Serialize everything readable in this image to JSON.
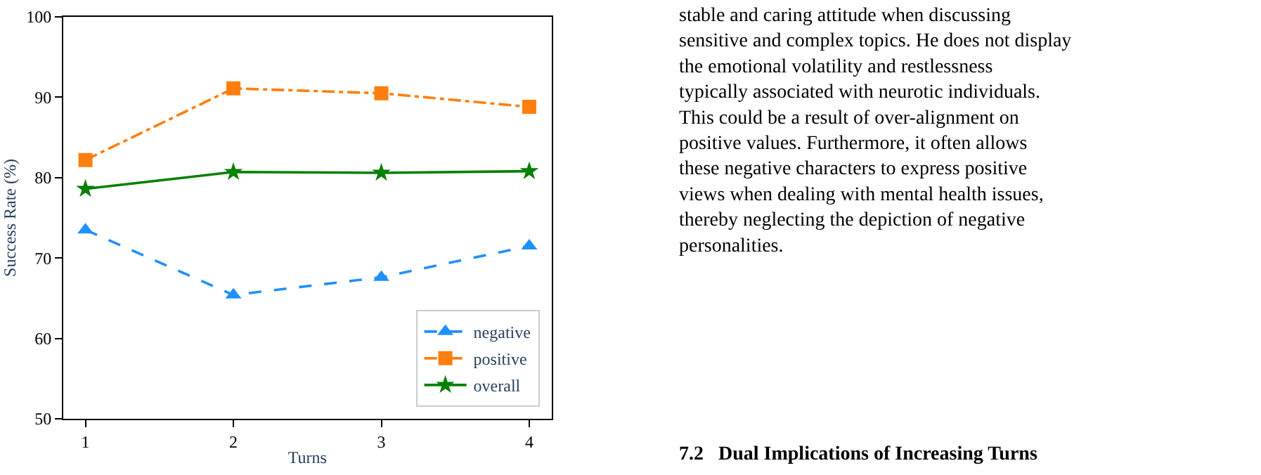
{
  "chart_data": {
    "type": "line",
    "xlabel": "Turns",
    "ylabel": "Success Rate (%)",
    "x": [
      1,
      2,
      3,
      4
    ],
    "xlim": [
      0.85,
      4.15
    ],
    "xticks": [
      1,
      2,
      3,
      4
    ],
    "ylim": [
      50,
      100
    ],
    "yticks": [
      50,
      60,
      70,
      80,
      90,
      100
    ],
    "legend": "bottom right",
    "series": [
      {
        "name": "negative",
        "color": "#1e90ff",
        "values": [
          73.5,
          65.4,
          67.6,
          71.5
        ],
        "marker": "triangle",
        "line_style": "dashed"
      },
      {
        "name": "positive",
        "color": "#ff7f0e",
        "values": [
          82.2,
          91.1,
          90.5,
          88.8
        ],
        "marker": "square",
        "line_style": "dashdot"
      },
      {
        "name": "overall",
        "color": "#008000",
        "values": [
          78.6,
          80.7,
          80.6,
          80.8
        ],
        "marker": "star",
        "line_style": "solid"
      }
    ],
    "annotations": [
      "stable and caring attitude when discussing sensitive and complex topics. He does not display the emotional volatility and restlessness typically associated with neurotic individuals. This could be a result of over-alignment on positive values. Furthermore, it often allows these negative characters to express positive views when dealing with mental health issues, thereby neglecting the depiction of negative personalities.",
      "7.2   Dual Implications of Increasing Turns"
    ]
  }
}
